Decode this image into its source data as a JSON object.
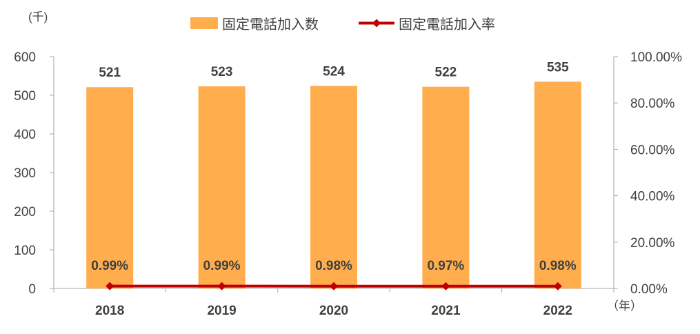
{
  "chart_data": {
    "type": "bar",
    "categories": [
      "2018",
      "2019",
      "2020",
      "2021",
      "2022"
    ],
    "series": [
      {
        "name": "固定電話加入数",
        "type": "bar",
        "axis": "left",
        "values": [
          521,
          523,
          524,
          522,
          535
        ],
        "labels": [
          "521",
          "523",
          "524",
          "522",
          "535"
        ]
      },
      {
        "name": "固定電話加入率",
        "type": "line",
        "axis": "right",
        "values": [
          0.99,
          0.99,
          0.98,
          0.97,
          0.98
        ],
        "labels": [
          "0.99%",
          "0.99%",
          "0.98%",
          "0.97%",
          "0.98%"
        ]
      }
    ],
    "y_left": {
      "unit_label": "(千)",
      "ylim": [
        0,
        600
      ],
      "ticks": [
        "0",
        "100",
        "200",
        "300",
        "400",
        "500",
        "600"
      ]
    },
    "y_right": {
      "ylim": [
        0,
        100
      ],
      "ticks": [
        "0.00%",
        "20.00%",
        "40.00%",
        "60.00%",
        "80.00%",
        "100.00%"
      ]
    },
    "x_unit_label": "（年）",
    "legend_position": "top",
    "grid": false,
    "colors": {
      "bar": "#FFAD4D",
      "line": "#C00000",
      "axis": "#A6A6A6"
    }
  }
}
